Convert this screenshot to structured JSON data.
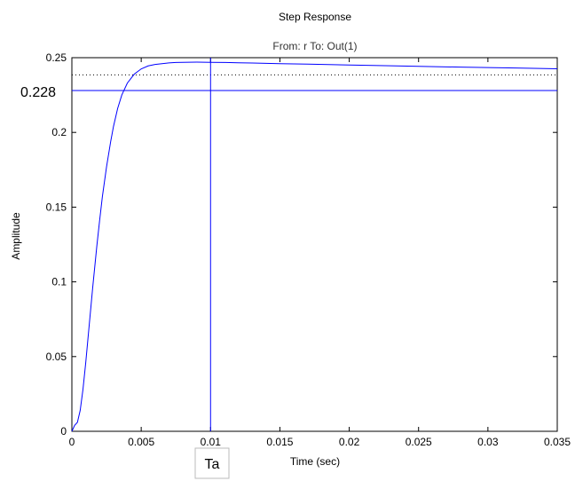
{
  "chart_data": {
    "type": "line",
    "title": "Step Response",
    "subtitle": "From: r  To: Out(1)",
    "xlabel": "Time (sec)",
    "ylabel": "Amplitude",
    "xlim": [
      0,
      0.035
    ],
    "ylim": [
      0,
      0.25
    ],
    "x_ticks": [
      0,
      0.005,
      0.01,
      0.015,
      0.02,
      0.025,
      0.03,
      0.035
    ],
    "x_tick_labels": [
      "0",
      "0.005",
      "0.01",
      "0.015",
      "0.02",
      "0.025",
      "0.03",
      "0.035"
    ],
    "y_ticks": [
      0,
      0.05,
      0.1,
      0.15,
      0.2,
      0.25
    ],
    "y_tick_labels": [
      "0",
      "0.05",
      "0.1",
      "0.15",
      "0.2",
      "0.25"
    ],
    "grid": false,
    "series": [
      {
        "color": "#0000ff",
        "x": [
          0,
          0.0002,
          0.0004,
          0.0006,
          0.0008,
          0.001,
          0.0012,
          0.0015,
          0.0018,
          0.002,
          0.0022,
          0.0025,
          0.0028,
          0.003,
          0.0033,
          0.0036,
          0.004,
          0.0045,
          0.005,
          0.0055,
          0.006,
          0.0065,
          0.007,
          0.0075,
          0.008,
          0.009,
          0.01,
          0.011,
          0.012,
          0.013,
          0.015,
          0.017,
          0.02,
          0.023,
          0.025,
          0.028,
          0.03,
          0.032,
          0.035
        ],
        "y": [
          0,
          0.004,
          0.006,
          0.014,
          0.028,
          0.046,
          0.066,
          0.096,
          0.124,
          0.141,
          0.157,
          0.177,
          0.194,
          0.204,
          0.216,
          0.225,
          0.233,
          0.239,
          0.2425,
          0.2445,
          0.2455,
          0.246,
          0.2465,
          0.2468,
          0.2469,
          0.247,
          0.2469,
          0.2468,
          0.2466,
          0.2464,
          0.246,
          0.2457,
          0.2451,
          0.2446,
          0.2442,
          0.2437,
          0.2434,
          0.2431,
          0.2426
        ]
      }
    ],
    "reference_lines": [
      {
        "orientation": "horizontal",
        "value": 0.228,
        "style": "solid",
        "color": "#0000ff",
        "label": "0.228"
      },
      {
        "orientation": "horizontal",
        "value": 0.2385,
        "style": "dotted",
        "color": "#000000"
      },
      {
        "orientation": "vertical",
        "value": 0.01,
        "style": "solid",
        "color": "#0000ff",
        "label": "Ta"
      }
    ]
  }
}
